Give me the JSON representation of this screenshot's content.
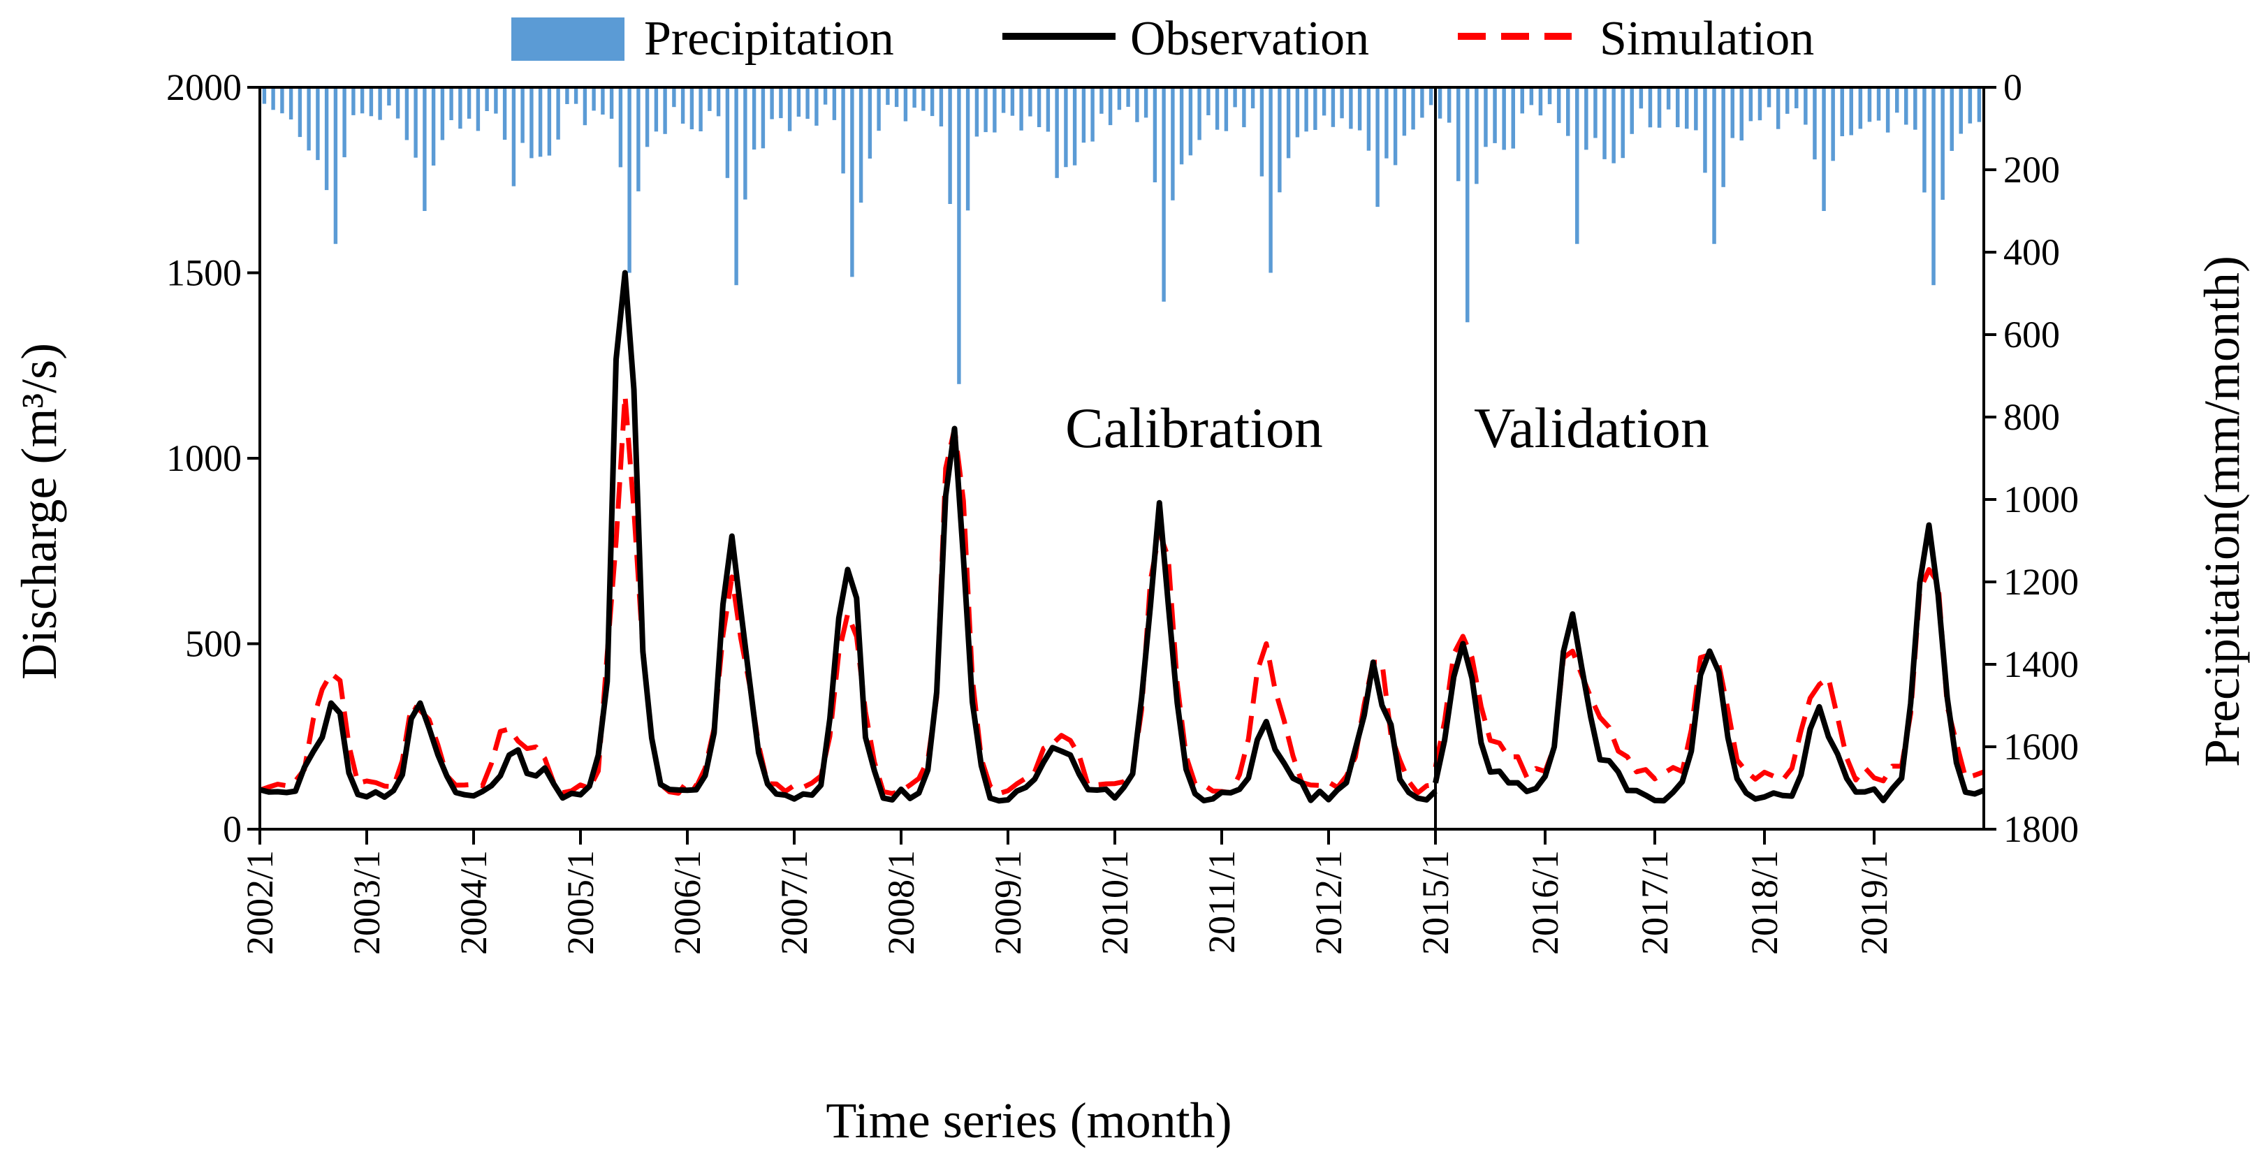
{
  "colors": {
    "precipitation": "#5b9bd5",
    "observation": "#000000",
    "simulation": "#ff0000"
  },
  "chart_data": {
    "type": "line",
    "title": "",
    "xlabel": "Time series (month)",
    "ylabel_left": "Discharge (m³/s)",
    "ylabel_right": "Precipitation(mm/month)",
    "ylim_left": [
      0,
      2000
    ],
    "ylim_right_inverted": [
      0,
      1800
    ],
    "yticks_left": [
      "0",
      "500",
      "1000",
      "1500",
      "2000"
    ],
    "yticks_right": [
      "0",
      "200",
      "400",
      "600",
      "800",
      "1000",
      "1200",
      "1400",
      "1600",
      "1800"
    ],
    "xticks": [
      "2002/1",
      "2003/1",
      "2004/1",
      "2005/1",
      "2006/1",
      "2007/1",
      "2008/1",
      "2009/1",
      "2010/1",
      "2011/1",
      "2012/1",
      "2015/1",
      "2016/1",
      "2017/1",
      "2018/1",
      "2019/1"
    ],
    "legend": {
      "placement": "top",
      "entries": [
        "Precipitation",
        "Observation",
        "Simulation"
      ]
    },
    "annotations": [
      "Calibration",
      "Validation"
    ],
    "segments": [
      {
        "name": "Calibration",
        "start_year": 2002,
        "months": 132,
        "peaks": [
          {
            "month": 8,
            "obs": 340,
            "sim": 420,
            "precip": 380
          },
          {
            "month": 18,
            "obs": 340,
            "sim": 320,
            "precip": 300
          },
          {
            "month": 28,
            "obs": 200,
            "sim": 270,
            "precip": 240
          },
          {
            "month": 41,
            "obs": 1500,
            "sim": 1170,
            "precip": 450
          },
          {
            "month": 53,
            "obs": 790,
            "sim": 680,
            "precip": 480
          },
          {
            "month": 66,
            "obs": 700,
            "sim": 580,
            "precip": 460
          },
          {
            "month": 78,
            "obs": 1080,
            "sim": 1080,
            "precip": 720
          },
          {
            "month": 89,
            "obs": 220,
            "sim": 230,
            "precip": 220
          },
          {
            "month": 101,
            "obs": 880,
            "sim": 800,
            "precip": 520
          },
          {
            "month": 113,
            "obs": 290,
            "sim": 500,
            "precip": 450
          },
          {
            "month": 125,
            "obs": 450,
            "sim": 450,
            "precip": 290
          }
        ]
      },
      {
        "name": "Validation",
        "start_year": 2015,
        "months": 60,
        "peaks": [
          {
            "month": 3,
            "obs": 500,
            "sim": 520,
            "precip": 570
          },
          {
            "month": 15,
            "obs": 580,
            "sim": 480,
            "precip": 380
          },
          {
            "month": 30,
            "obs": 480,
            "sim": 470,
            "precip": 380
          },
          {
            "month": 42,
            "obs": 330,
            "sim": 390,
            "precip": 300
          },
          {
            "month": 54,
            "obs": 820,
            "sim": 700,
            "precip": 480
          }
        ]
      }
    ]
  }
}
